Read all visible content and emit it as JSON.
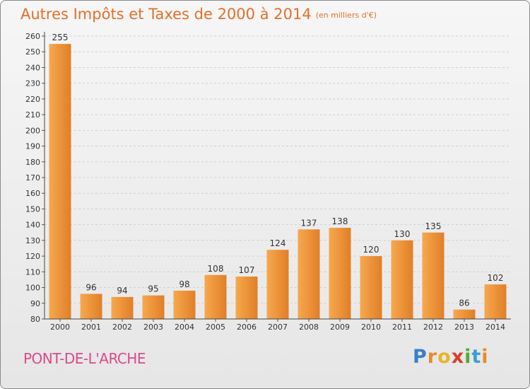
{
  "header": {
    "title": "Autres Impôts et Taxes de 2000 à 2014",
    "unit": "(en milliers d'€)"
  },
  "footer": {
    "city": "PONT-DE-L'ARCHE",
    "logo": "Proxiti"
  },
  "colors": {
    "bar_light": "#f7a84e",
    "bar_dark": "#e07f27",
    "title": "#e0702a",
    "city": "#d94a87"
  },
  "chart_data": {
    "type": "bar",
    "categories": [
      "2000",
      "2001",
      "2002",
      "2003",
      "2004",
      "2005",
      "2006",
      "2007",
      "2008",
      "2009",
      "2010",
      "2011",
      "2012",
      "2013",
      "2014"
    ],
    "values": [
      255,
      96,
      94,
      95,
      98,
      108,
      107,
      124,
      137,
      138,
      120,
      130,
      135,
      86,
      102
    ],
    "title": "Autres Impôts et Taxes de 2000 à 2014",
    "xlabel": "",
    "ylabel": "",
    "ylim": [
      80,
      260
    ],
    "yticks": [
      80,
      90,
      100,
      110,
      120,
      130,
      140,
      150,
      160,
      170,
      180,
      190,
      200,
      210,
      220,
      230,
      240,
      250,
      260
    ],
    "grid": true,
    "data_labels": true
  }
}
